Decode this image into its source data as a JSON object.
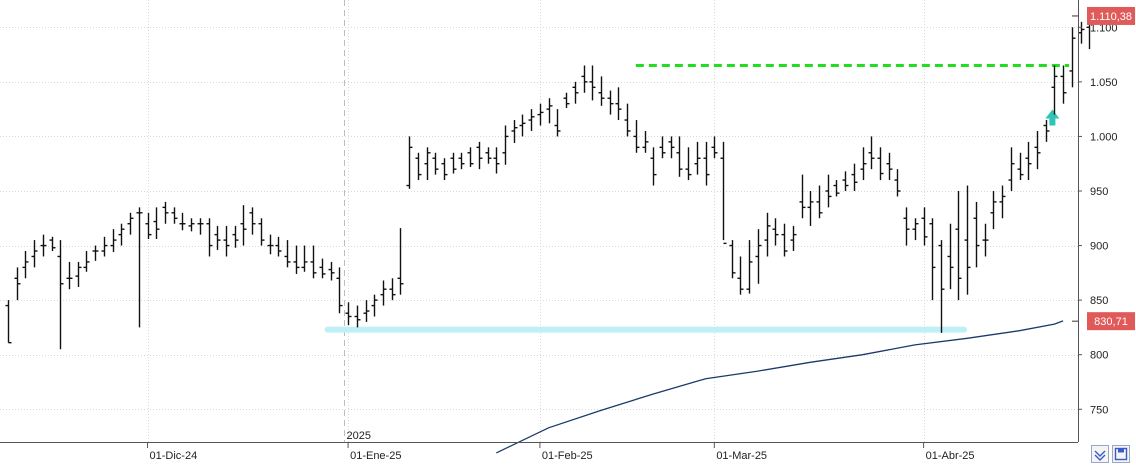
{
  "chart_data": {
    "type": "ohlc",
    "title": "",
    "xlabel": "",
    "ylabel": "",
    "ylim": [
      720,
      1125
    ],
    "grid": true,
    "y_ticks": [
      750,
      800,
      850,
      900,
      950,
      1000,
      1050,
      1100
    ],
    "y_tick_labels": [
      "750",
      "800",
      "850",
      "900",
      "950",
      "1.000",
      "1.050",
      "1.100"
    ],
    "x_tick_labels": [
      {
        "label": "01-Dic-24",
        "index": 16
      },
      {
        "label": "01-Ene-25",
        "index": 39
      },
      {
        "label": "01-Feb-25",
        "index": 61
      },
      {
        "label": "01-Mar-25",
        "index": 81
      },
      {
        "label": "01-Abr-25",
        "index": 105
      }
    ],
    "year_marker": {
      "label": "2025",
      "index": 39
    },
    "price_badge": {
      "label": "1.110,38",
      "value": 1110.38,
      "color": "#e05a5a"
    },
    "ma_badge": {
      "label": "830,71",
      "value": 830.71,
      "color": "#e05a5a"
    },
    "bar_color": "#111111",
    "grid_color": "#d9d9d9",
    "series": [
      {
        "bars": [
          [
            845,
            811,
            850,
            811
          ],
          [
            870,
            850,
            880,
            865
          ],
          [
            880,
            870,
            895,
            885
          ],
          [
            890,
            880,
            905,
            895
          ],
          [
            900,
            890,
            910,
            900
          ],
          [
            905,
            895,
            908,
            898
          ],
          [
            890,
            805,
            905,
            865
          ],
          [
            870,
            860,
            885,
            870
          ],
          [
            872,
            862,
            885,
            880
          ],
          [
            880,
            876,
            895,
            885
          ],
          [
            895,
            886,
            900,
            895
          ],
          [
            895,
            890,
            908,
            900
          ],
          [
            900,
            894,
            915,
            905
          ],
          [
            910,
            900,
            920,
            915
          ],
          [
            920,
            910,
            930,
            925
          ],
          [
            930,
            825,
            935,
            930
          ],
          [
            920,
            906,
            930,
            910
          ],
          [
            922,
            906,
            935,
            915
          ],
          [
            935,
            920,
            940,
            930
          ],
          [
            930,
            920,
            935,
            925
          ],
          [
            920,
            914,
            930,
            920
          ],
          [
            918,
            913,
            925,
            920
          ],
          [
            920,
            910,
            925,
            920
          ],
          [
            920,
            890,
            925,
            900
          ],
          [
            910,
            896,
            918,
            905
          ],
          [
            905,
            890,
            918,
            900
          ],
          [
            910,
            898,
            918,
            905
          ],
          [
            920,
            900,
            937,
            915
          ],
          [
            930,
            910,
            935,
            920
          ],
          [
            920,
            900,
            925,
            905
          ],
          [
            900,
            892,
            910,
            900
          ],
          [
            900,
            890,
            908,
            895
          ],
          [
            890,
            880,
            905,
            885
          ],
          [
            885,
            874,
            900,
            880
          ],
          [
            880,
            876,
            900,
            885
          ],
          [
            885,
            870,
            900,
            875
          ],
          [
            880,
            870,
            888,
            874
          ],
          [
            878,
            868,
            885,
            875
          ],
          [
            870,
            838,
            880,
            845
          ],
          [
            838,
            827,
            848,
            835
          ],
          [
            835,
            825,
            845,
            832
          ],
          [
            838,
            830,
            850,
            840
          ],
          [
            845,
            835,
            855,
            850
          ],
          [
            855,
            845,
            868,
            860
          ],
          [
            860,
            850,
            870,
            855
          ],
          [
            870,
            855,
            916,
            865
          ],
          [
            955,
            952,
            1000,
            990
          ],
          [
            980,
            960,
            985,
            965
          ],
          [
            975,
            960,
            990,
            985
          ],
          [
            980,
            965,
            985,
            970
          ],
          [
            975,
            960,
            980,
            965
          ],
          [
            980,
            966,
            985,
            970
          ],
          [
            980,
            970,
            985,
            975
          ],
          [
            985,
            972,
            990,
            975
          ],
          [
            990,
            970,
            995,
            980
          ],
          [
            985,
            975,
            990,
            980
          ],
          [
            980,
            966,
            990,
            975
          ],
          [
            985,
            974,
            1010,
            1000
          ],
          [
            1005,
            994,
            1015,
            1008
          ],
          [
            1010,
            1000,
            1020,
            1012
          ],
          [
            1015,
            1005,
            1025,
            1018
          ],
          [
            1020,
            1010,
            1030,
            1022
          ],
          [
            1025,
            1012,
            1035,
            1028
          ],
          [
            1010,
            1000,
            1025,
            1005
          ],
          [
            1035,
            1026,
            1040,
            1030
          ],
          [
            1045,
            1030,
            1050,
            1040
          ],
          [
            1055,
            1040,
            1065,
            1050
          ],
          [
            1050,
            1033,
            1065,
            1045
          ],
          [
            1040,
            1028,
            1055,
            1035
          ],
          [
            1035,
            1020,
            1042,
            1030
          ],
          [
            1030,
            1015,
            1045,
            1025
          ],
          [
            1015,
            1000,
            1030,
            1005
          ],
          [
            1000,
            985,
            1015,
            990
          ],
          [
            990,
            985,
            1005,
            995
          ],
          [
            980,
            955,
            990,
            965
          ],
          [
            990,
            980,
            1000,
            985
          ],
          [
            995,
            980,
            1000,
            990
          ],
          [
            985,
            963,
            1000,
            970
          ],
          [
            970,
            960,
            990,
            965
          ],
          [
            975,
            965,
            995,
            980
          ],
          [
            980,
            955,
            995,
            965
          ],
          [
            990,
            980,
            1000,
            985
          ],
          [
            980,
            905,
            995,
            902
          ],
          [
            900,
            870,
            905,
            875
          ],
          [
            870,
            855,
            890,
            860
          ],
          [
            860,
            856,
            905,
            885
          ],
          [
            890,
            865,
            915,
            900
          ],
          [
            905,
            890,
            930,
            918
          ],
          [
            915,
            900,
            925,
            910
          ],
          [
            910,
            890,
            920,
            895
          ],
          [
            905,
            895,
            918,
            910
          ],
          [
            940,
            925,
            965,
            935
          ],
          [
            935,
            918,
            950,
            940
          ],
          [
            940,
            925,
            955,
            930
          ],
          [
            950,
            935,
            965,
            945
          ],
          [
            955,
            945,
            960,
            948
          ],
          [
            960,
            950,
            968,
            955
          ],
          [
            965,
            950,
            975,
            958
          ],
          [
            970,
            960,
            990,
            975
          ],
          [
            985,
            970,
            1000,
            980
          ],
          [
            980,
            960,
            990,
            966
          ],
          [
            975,
            960,
            985,
            970
          ],
          [
            960,
            945,
            970,
            950
          ],
          [
            925,
            900,
            935,
            915
          ],
          [
            915,
            905,
            925,
            920
          ],
          [
            925,
            900,
            935,
            908
          ],
          [
            920,
            850,
            925,
            880
          ],
          [
            900,
            820,
            905,
            860
          ],
          [
            890,
            860,
            920,
            880
          ],
          [
            915,
            850,
            950,
            870
          ],
          [
            905,
            855,
            955,
            880
          ],
          [
            925,
            880,
            940,
            900
          ],
          [
            905,
            890,
            920,
            905
          ],
          [
            930,
            915,
            950,
            940
          ],
          [
            940,
            925,
            955,
            945
          ],
          [
            960,
            950,
            990,
            975
          ],
          [
            970,
            960,
            985,
            965
          ],
          [
            980,
            960,
            995,
            975
          ],
          [
            990,
            970,
            1005,
            985
          ],
          [
            1010,
            995,
            1015,
            1005
          ],
          [
            1045,
            1020,
            1065,
            1055
          ],
          [
            1055,
            1030,
            1065,
            1040
          ],
          [
            1060,
            1045,
            1100,
            1090
          ],
          [
            1095,
            1085,
            1105,
            1098
          ],
          [
            1100,
            1080,
            1112,
            1110
          ]
        ]
      }
    ],
    "moving_average": {
      "color": "#1b3a6b",
      "points": [
        [
          56,
          710
        ],
        [
          62,
          733
        ],
        [
          68,
          749
        ],
        [
          74,
          764
        ],
        [
          80,
          778
        ],
        [
          86,
          785
        ],
        [
          92,
          793
        ],
        [
          98,
          800
        ],
        [
          104,
          809
        ],
        [
          110,
          815
        ],
        [
          116,
          822
        ],
        [
          120,
          828
        ],
        [
          121,
          831
        ]
      ]
    },
    "resistance_line": {
      "value": 1065,
      "from_index": 72,
      "to_index": 121,
      "color": "#22dd22"
    },
    "support_zone": {
      "value": 823,
      "from_index": 37,
      "to_index": 121,
      "color": "#bff0f5"
    },
    "signal_arrow": {
      "index": 120,
      "value": 1010,
      "direction": "up",
      "color": "#2ec4b6"
    }
  },
  "toolbar": {
    "left_icon": "collapse-down-icon",
    "right_icon": "save-icon",
    "accent": "#3a5bc7"
  }
}
